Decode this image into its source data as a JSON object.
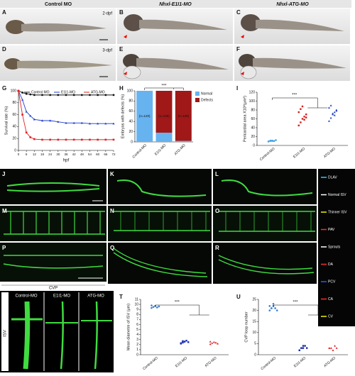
{
  "headers": [
    "Control MO",
    "Nhxl-E1I1-MO",
    "Nhxl-ATG-MO"
  ],
  "panels": [
    "A",
    "B",
    "C",
    "D",
    "E",
    "F",
    "G",
    "H",
    "I",
    "J",
    "K",
    "L",
    "M",
    "N",
    "O",
    "P",
    "Q",
    "R",
    "S",
    "T",
    "U"
  ],
  "image_labels": {
    "row1": "2-dpf",
    "row2": "3-dpf",
    "cvp": "CVP",
    "isv": "ISV",
    "s_columns": [
      "Control-MO",
      "E1I1-MO",
      "ATG-MO"
    ]
  },
  "legend": [
    {
      "label": "DLAV",
      "color": "#33c6ff"
    },
    {
      "label": "Normal ISV",
      "color": "#ffffff"
    },
    {
      "label": "Thinner ISV",
      "color": "#f2f200"
    },
    {
      "label": "PAV",
      "color": "#ff2a2a"
    },
    {
      "label": "Sprouts",
      "color": "#ffffff"
    },
    {
      "label": "DA",
      "color": "#ff2a2a"
    },
    {
      "label": "PCV",
      "color": "#3355ff"
    },
    {
      "label": "CA",
      "color": "#ff2a2a"
    },
    {
      "label": "CV",
      "color": "#f2f200"
    }
  ],
  "chart_data": [
    {
      "type": "line",
      "ylabel": "Survival rate (%)",
      "xlabel": "hpf",
      "x": [
        0,
        3,
        6,
        9,
        12,
        18,
        24,
        30,
        36,
        42,
        48,
        54,
        60,
        66,
        72
      ],
      "xlim": [
        0,
        72
      ],
      "xticks": [
        0,
        6,
        12,
        18,
        24,
        30,
        36,
        42,
        48,
        54,
        60,
        66,
        72
      ],
      "ylim": [
        0,
        100
      ],
      "yticks": [
        0,
        20,
        40,
        60,
        80,
        100
      ],
      "series": [
        {
          "name": "Control MO",
          "color": "#111111",
          "values": [
            100,
            97,
            95,
            94,
            93,
            93,
            93,
            93,
            93,
            93,
            93,
            93,
            93,
            93,
            93
          ]
        },
        {
          "name": "E1I1-MO",
          "color": "#1f3fd0",
          "values": [
            100,
            85,
            65,
            58,
            52,
            50,
            50,
            48,
            46,
            46,
            46,
            45,
            45,
            45,
            45
          ]
        },
        {
          "name": "ATG-MO",
          "color": "#e02020",
          "values": [
            100,
            60,
            30,
            22,
            19,
            18,
            18,
            18,
            18,
            18,
            18,
            18,
            18,
            18,
            18
          ]
        }
      ]
    },
    {
      "type": "stacked-bar",
      "ylabel": "Embryos with defects (%)",
      "annotation": "***",
      "categories": [
        "Control-MO",
        "E1I1-MO",
        "ATG-MO"
      ],
      "n_labels": [
        "(n=120)",
        "(n=126)",
        "(n=125)"
      ],
      "ylim": [
        0,
        100
      ],
      "yticks": [
        0,
        20,
        40,
        60,
        80,
        100
      ],
      "series": [
        {
          "name": "Normal",
          "color": "#66b3f0",
          "values": [
            100,
            18,
            2
          ]
        },
        {
          "name": "Defects",
          "color": "#a01818",
          "values": [
            0,
            82,
            98
          ]
        }
      ]
    },
    {
      "type": "dot",
      "ylabel": "Pericardial area X10³(μm²)",
      "annotation": "***",
      "ylim": [
        0,
        120
      ],
      "yticks": [
        0,
        20,
        40,
        60,
        80,
        100,
        120
      ],
      "series": [
        {
          "name": "Control-MO",
          "color": "#3fa0e0",
          "values": [
            9,
            10,
            11,
            10,
            12,
            9,
            11,
            10,
            10
          ]
        },
        {
          "name": "E1I1-MO",
          "color": "#d02020",
          "values": [
            45,
            52,
            60,
            65,
            70,
            75,
            82,
            88,
            58,
            63
          ]
        },
        {
          "name": "ATG-MO",
          "color": "#2040c0",
          "values": [
            55,
            62,
            70,
            75,
            80,
            85,
            90,
            72,
            68,
            78
          ]
        }
      ]
    },
    {
      "type": "dot",
      "ylabel": "Mean diametre of ISV (μm)",
      "annotation": "***",
      "ylim": [
        0,
        11
      ],
      "yticks": [
        0,
        1,
        2,
        3,
        4,
        5,
        6,
        7,
        8,
        9,
        10,
        11
      ],
      "series": [
        {
          "name": "Control-MO",
          "color": "#3a7fd0",
          "values": [
            9.3,
            9.5,
            9.7,
            9.4,
            9.6,
            9.8
          ]
        },
        {
          "name": "E1I1-MO",
          "color": "#1a2fb0",
          "values": [
            2.2,
            2.4,
            2.6,
            2.8,
            2.5,
            2.3,
            2.7,
            2.6
          ]
        },
        {
          "name": "ATG-MO",
          "color": "#e02020",
          "values": [
            2.1,
            2.3,
            2.5,
            2.4,
            2.2,
            2.6
          ]
        }
      ]
    },
    {
      "type": "dot",
      "ylabel": "CVP loop number",
      "annotation": "***",
      "ylim": [
        0,
        25
      ],
      "yticks": [
        0,
        5,
        10,
        15,
        20,
        25
      ],
      "series": [
        {
          "name": "Control-MO",
          "color": "#3a7fd0",
          "values": [
            20,
            21,
            22,
            21,
            20,
            22,
            21,
            23
          ]
        },
        {
          "name": "E1I1-MO",
          "color": "#1a2fb0",
          "values": [
            2,
            3,
            3,
            4,
            3,
            2,
            3,
            4
          ]
        },
        {
          "name": "ATG-MO",
          "color": "#e02020",
          "values": [
            3,
            3,
            2,
            4,
            3,
            3
          ]
        }
      ]
    }
  ]
}
